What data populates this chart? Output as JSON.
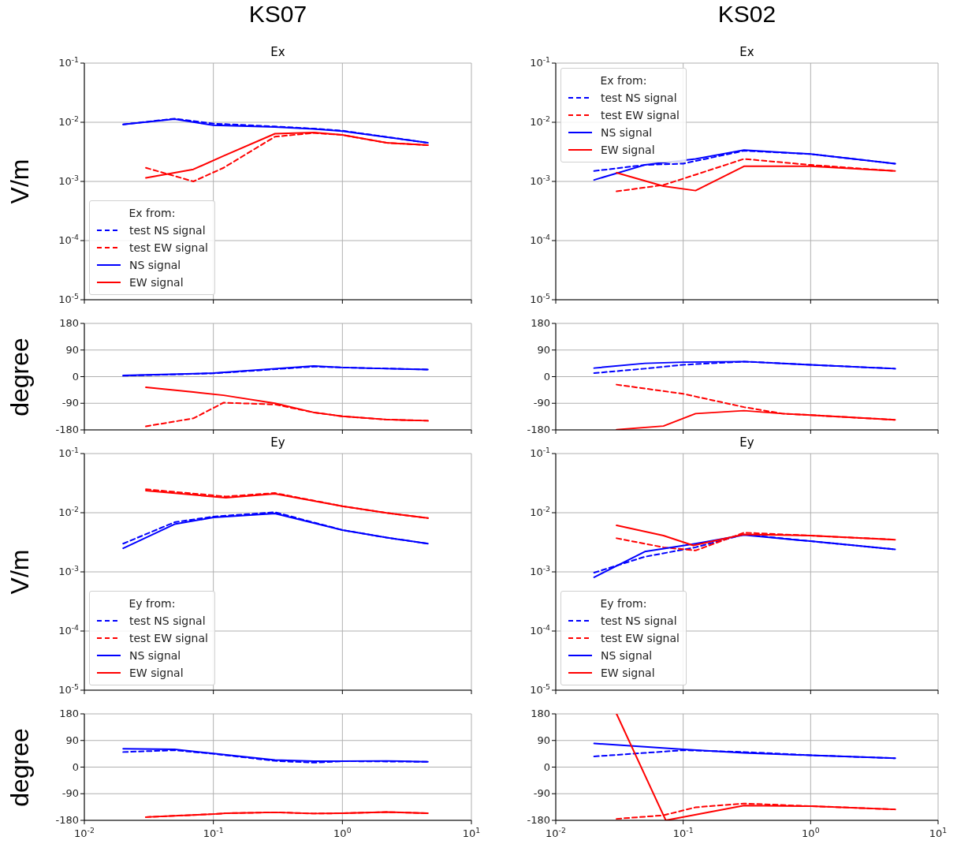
{
  "chart_data": [
    {
      "type": "line",
      "title": "KS07",
      "subtitle": "Ex",
      "ylabel": "V/m",
      "legend_title": "Ex from:",
      "legend": "bottom left",
      "log": "xy",
      "grid": true,
      "tick_labels": "y",
      "xlim": [
        0.01,
        10
      ],
      "xticks": [
        {
          "value": 0.01,
          "label": null
        },
        {
          "value": 0.1,
          "label": null
        },
        {
          "value": 1,
          "label": null
        },
        {
          "value": 10,
          "label": null
        }
      ],
      "ylim": [
        1e-05,
        0.1
      ],
      "yticks": [
        {
          "value": 1e-05,
          "label": "10$^{-5}$"
        },
        {
          "value": 0.0001,
          "label": "10$^{-4}$"
        },
        {
          "value": 0.001,
          "label": "10$^{-3}$"
        },
        {
          "value": 0.01,
          "label": "10$^{-2}$"
        },
        {
          "value": 0.1,
          "label": "10$^{-1}$"
        }
      ],
      "series": [
        {
          "name": "test NS signal",
          "color": "#0000ff",
          "line_style": "dashed",
          "x": [
            0.02,
            0.05,
            0.1,
            0.3,
            0.6,
            1,
            4.6
          ],
          "values": [
            0.0092,
            0.0115,
            0.0095,
            0.0085,
            0.0078,
            0.0072,
            0.0045
          ]
        },
        {
          "name": "test EW signal",
          "color": "#ff0000",
          "line_style": "dashed",
          "x": [
            0.03,
            0.07,
            0.12,
            0.3,
            0.6,
            1,
            2.2,
            4.6
          ],
          "values": [
            0.0017,
            0.001,
            0.0017,
            0.0057,
            0.0066,
            0.0061,
            0.0045,
            0.0041
          ]
        },
        {
          "name": "NS signal",
          "color": "#0000ff",
          "line_style": "solid",
          "x": [
            0.02,
            0.05,
            0.1,
            0.3,
            0.6,
            1,
            4.6
          ],
          "values": [
            0.0092,
            0.0113,
            0.0089,
            0.0083,
            0.0077,
            0.0071,
            0.0045
          ]
        },
        {
          "name": "EW signal",
          "color": "#ff0000",
          "line_style": "solid",
          "x": [
            0.03,
            0.07,
            0.12,
            0.3,
            0.6,
            1,
            2.2,
            4.6
          ],
          "values": [
            0.00115,
            0.0016,
            0.0027,
            0.0064,
            0.0067,
            0.0061,
            0.0045,
            0.0041
          ]
        }
      ]
    },
    {
      "type": "line",
      "title": "KS02",
      "subtitle": "Ex",
      "legend_title": "Ex from:",
      "legend": "top left",
      "log": "xy",
      "grid": true,
      "tick_labels": "y",
      "xlim": [
        0.01,
        10
      ],
      "xticks": [
        {
          "value": 0.01,
          "label": null
        },
        {
          "value": 0.1,
          "label": null
        },
        {
          "value": 1,
          "label": null
        },
        {
          "value": 10,
          "label": null
        }
      ],
      "ylim": [
        1e-05,
        0.1
      ],
      "yticks": [
        {
          "value": 1e-05,
          "label": "10$^{-5}$"
        },
        {
          "value": 0.0001,
          "label": "10$^{-4}$"
        },
        {
          "value": 0.001,
          "label": "10$^{-3}$"
        },
        {
          "value": 0.01,
          "label": "10$^{-2}$"
        },
        {
          "value": 0.1,
          "label": "10$^{-1}$"
        }
      ],
      "series": [
        {
          "name": "test NS signal",
          "color": "#0000ff",
          "line_style": "dashed",
          "x": [
            0.02,
            0.05,
            0.1,
            0.3,
            1,
            4.6
          ],
          "values": [
            0.0015,
            0.0019,
            0.002,
            0.0033,
            0.0029,
            0.002
          ]
        },
        {
          "name": "test EW signal",
          "color": "#ff0000",
          "line_style": "dashed",
          "x": [
            0.03,
            0.07,
            0.125,
            0.3,
            1,
            4.6
          ],
          "values": [
            0.00068,
            0.00087,
            0.0013,
            0.0024,
            0.0019,
            0.0015
          ]
        },
        {
          "name": "NS signal",
          "color": "#0000ff",
          "line_style": "solid",
          "x": [
            0.02,
            0.05,
            0.125,
            0.3,
            1,
            4.6
          ],
          "values": [
            0.00106,
            0.0019,
            0.0024,
            0.0034,
            0.0029,
            0.002
          ]
        },
        {
          "name": "EW signal",
          "color": "#ff0000",
          "line_style": "solid",
          "x": [
            0.03,
            0.07,
            0.125,
            0.3,
            1,
            4.6
          ],
          "values": [
            0.0014,
            0.00083,
            0.0007,
            0.0018,
            0.0018,
            0.0015
          ]
        }
      ]
    },
    {
      "type": "line",
      "ylabel": "degree",
      "log": "x",
      "grid": true,
      "tick_labels": "y",
      "xlim": [
        0.01,
        10
      ],
      "xticks": [
        {
          "value": 0.01,
          "label": null
        },
        {
          "value": 0.1,
          "label": null
        },
        {
          "value": 1,
          "label": null
        },
        {
          "value": 10,
          "label": null
        }
      ],
      "ylim": [
        -180,
        180
      ],
      "yticks": [
        -180,
        -90,
        0,
        90,
        180
      ],
      "series": [
        {
          "color": "#0000ff",
          "line_style": "dashed",
          "x": [
            0.02,
            0.1,
            0.3,
            0.6,
            1,
            4.6
          ],
          "values": [
            3,
            11,
            25,
            34,
            31,
            24
          ]
        },
        {
          "color": "#ff0000",
          "line_style": "dashed",
          "x": [
            0.03,
            0.07,
            0.12,
            0.3,
            0.6,
            1,
            2.2,
            4.6
          ],
          "values": [
            -168,
            -141,
            -88,
            -94,
            -121,
            -134,
            -145,
            -149
          ]
        },
        {
          "color": "#0000ff",
          "line_style": "solid",
          "x": [
            0.02,
            0.1,
            0.3,
            0.6,
            1,
            2.2,
            4.6
          ],
          "values": [
            4,
            12,
            27,
            36,
            31,
            27,
            24
          ]
        },
        {
          "color": "#ff0000",
          "line_style": "solid",
          "x": [
            0.03,
            0.07,
            0.12,
            0.3,
            0.6,
            1,
            2.2,
            4.6
          ],
          "values": [
            -36,
            -52,
            -63,
            -90,
            -121,
            -134,
            -145,
            -149
          ]
        }
      ]
    },
    {
      "type": "line",
      "log": "x",
      "grid": true,
      "tick_labels": "y",
      "xlim": [
        0.01,
        10
      ],
      "xticks": [
        {
          "value": 0.01,
          "label": null
        },
        {
          "value": 0.1,
          "label": null
        },
        {
          "value": 1,
          "label": null
        },
        {
          "value": 10,
          "label": null
        }
      ],
      "ylim": [
        -180,
        180
      ],
      "yticks": [
        -180,
        -90,
        0,
        90,
        180
      ],
      "series": [
        {
          "color": "#0000ff",
          "line_style": "dashed",
          "x": [
            0.02,
            0.05,
            0.1,
            0.3,
            1,
            4.6
          ],
          "values": [
            12,
            27,
            40,
            51,
            40,
            27
          ]
        },
        {
          "color": "#ff0000",
          "line_style": "dashed",
          "x": [
            0.03,
            0.1,
            0.3,
            0.6,
            1,
            4.6
          ],
          "values": [
            -27,
            -58,
            -103,
            -125,
            -130,
            -146
          ]
        },
        {
          "color": "#0000ff",
          "line_style": "solid",
          "x": [
            0.02,
            0.05,
            0.1,
            0.3,
            1,
            4.6
          ],
          "values": [
            29,
            45,
            49,
            51,
            40,
            27
          ]
        },
        {
          "color": "#ff0000",
          "line_style": "solid",
          "x": [
            0.03,
            0.07,
            0.125,
            0.3,
            0.6,
            1,
            4.6
          ],
          "values": [
            -179,
            -167,
            -125,
            -115,
            -125,
            -130,
            -146
          ]
        }
      ]
    },
    {
      "type": "line",
      "title": "Ey",
      "ylabel": "V/m",
      "legend_title": "Ey from:",
      "legend": "bottom left",
      "log": "xy",
      "grid": true,
      "tick_labels": "y",
      "xlim": [
        0.01,
        10
      ],
      "xticks": [
        {
          "value": 0.01,
          "label": null
        },
        {
          "value": 0.1,
          "label": null
        },
        {
          "value": 1,
          "label": null
        },
        {
          "value": 10,
          "label": null
        }
      ],
      "ylim": [
        1e-05,
        0.1
      ],
      "yticks": [
        {
          "value": 1e-05,
          "label": "10$^{-5}$"
        },
        {
          "value": 0.0001,
          "label": "10$^{-4}$"
        },
        {
          "value": 0.001,
          "label": "10$^{-3}$"
        },
        {
          "value": 0.01,
          "label": "10$^{-2}$"
        },
        {
          "value": 0.1,
          "label": "10$^{-1}$"
        }
      ],
      "series": [
        {
          "name": "test NS signal",
          "color": "#0000ff",
          "line_style": "dashed",
          "x": [
            0.02,
            0.05,
            0.1,
            0.3,
            1,
            2.2,
            4.6
          ],
          "values": [
            0.003,
            0.0069,
            0.0086,
            0.0102,
            0.0051,
            0.0038,
            0.003
          ]
        },
        {
          "name": "test EW signal",
          "color": "#ff0000",
          "line_style": "dashed",
          "x": [
            0.03,
            0.125,
            0.3,
            1,
            2.2,
            4.6
          ],
          "values": [
            0.0249,
            0.0188,
            0.0215,
            0.0129,
            0.0099,
            0.0081
          ]
        },
        {
          "name": "NS signal",
          "color": "#0000ff",
          "line_style": "solid",
          "x": [
            0.02,
            0.05,
            0.1,
            0.3,
            1,
            2.2,
            4.6
          ],
          "values": [
            0.0025,
            0.0064,
            0.0083,
            0.0097,
            0.0051,
            0.0038,
            0.003
          ]
        },
        {
          "name": "EW signal",
          "color": "#ff0000",
          "line_style": "solid",
          "x": [
            0.03,
            0.125,
            0.3,
            1,
            2.2,
            4.6
          ],
          "values": [
            0.0236,
            0.0179,
            0.0209,
            0.0129,
            0.0099,
            0.0081
          ]
        }
      ]
    },
    {
      "type": "line",
      "title": "Ey",
      "legend_title": "Ey from:",
      "legend": "bottom left",
      "log": "xy",
      "grid": true,
      "tick_labels": "y",
      "xlim": [
        0.01,
        10
      ],
      "xticks": [
        {
          "value": 0.01,
          "label": null
        },
        {
          "value": 0.1,
          "label": null
        },
        {
          "value": 1,
          "label": null
        },
        {
          "value": 10,
          "label": null
        }
      ],
      "ylim": [
        1e-05,
        0.1
      ],
      "yticks": [
        {
          "value": 1e-05,
          "label": "10$^{-5}$"
        },
        {
          "value": 0.0001,
          "label": "10$^{-4}$"
        },
        {
          "value": 0.001,
          "label": "10$^{-3}$"
        },
        {
          "value": 0.01,
          "label": "10$^{-2}$"
        },
        {
          "value": 0.1,
          "label": "10$^{-1}$"
        }
      ],
      "series": [
        {
          "name": "test NS signal",
          "color": "#0000ff",
          "line_style": "dashed",
          "x": [
            0.02,
            0.05,
            0.125,
            0.3,
            1,
            4.6
          ],
          "values": [
            0.00097,
            0.0018,
            0.0026,
            0.0043,
            0.0033,
            0.0024
          ]
        },
        {
          "name": "test EW signal",
          "color": "#ff0000",
          "line_style": "dashed",
          "x": [
            0.03,
            0.07,
            0.125,
            0.3,
            1,
            4.6
          ],
          "values": [
            0.0037,
            0.0026,
            0.0023,
            0.0046,
            0.0041,
            0.0035
          ]
        },
        {
          "name": "NS signal",
          "color": "#0000ff",
          "line_style": "solid",
          "x": [
            0.02,
            0.05,
            0.125,
            0.3,
            1,
            4.6
          ],
          "values": [
            0.00081,
            0.0022,
            0.003,
            0.0042,
            0.0033,
            0.0024
          ]
        },
        {
          "name": "EW signal",
          "color": "#ff0000",
          "line_style": "solid",
          "x": [
            0.03,
            0.07,
            0.12,
            0.3,
            1,
            4.6
          ],
          "values": [
            0.0061,
            0.0041,
            0.0028,
            0.0043,
            0.0041,
            0.0035
          ]
        }
      ]
    },
    {
      "type": "line",
      "ylabel": "degree",
      "log": "x",
      "grid": true,
      "xlim": [
        0.01,
        10
      ],
      "xticks": [
        {
          "value": 0.01,
          "label": "10$^{-2}$"
        },
        {
          "value": 0.1,
          "label": "10$^{-1}$"
        },
        {
          "value": 1,
          "label": "10$^{0}$"
        },
        {
          "value": 10,
          "label": "10$^{1}$"
        }
      ],
      "ylim": [
        -180,
        180
      ],
      "yticks": [
        -180,
        -90,
        0,
        90,
        180
      ],
      "series": [
        {
          "color": "#0000ff",
          "line_style": "dashed",
          "x": [
            0.02,
            0.05,
            0.1,
            0.3,
            0.6,
            1,
            4.6
          ],
          "values": [
            51,
            57,
            45,
            21,
            15,
            20,
            18
          ]
        },
        {
          "color": "#ff0000",
          "line_style": "dashed",
          "x": [
            0.03,
            0.1,
            0.125,
            0.3,
            0.6,
            1,
            2.2,
            4.6
          ],
          "values": [
            -169,
            -159,
            -156,
            -153,
            -157,
            -156,
            -152,
            -156
          ]
        },
        {
          "color": "#0000ff",
          "line_style": "solid",
          "x": [
            0.02,
            0.05,
            0.1,
            0.3,
            0.6,
            1,
            2.2,
            4.6
          ],
          "values": [
            62,
            60,
            46,
            24,
            20,
            20,
            21,
            18
          ]
        },
        {
          "color": "#ff0000",
          "line_style": "solid",
          "x": [
            0.03,
            0.1,
            0.125,
            0.3,
            0.6,
            1,
            2.2,
            4.6
          ],
          "values": [
            -169,
            -159,
            -156,
            -153,
            -157,
            -156,
            -152,
            -156
          ]
        }
      ]
    },
    {
      "type": "line",
      "log": "x",
      "grid": true,
      "xlim": [
        0.01,
        10
      ],
      "xticks": [
        {
          "value": 0.01,
          "label": "10$^{-2}$"
        },
        {
          "value": 0.1,
          "label": "10$^{-1}$"
        },
        {
          "value": 1,
          "label": "10$^{0}$"
        },
        {
          "value": 10,
          "label": "10$^{1}$"
        }
      ],
      "ylim": [
        -180,
        180
      ],
      "yticks": [
        -180,
        -90,
        0,
        90,
        180
      ],
      "series": [
        {
          "color": "#0000ff",
          "line_style": "dashed",
          "x": [
            0.02,
            0.05,
            0.1,
            0.3,
            1,
            4.6
          ],
          "values": [
            36,
            48,
            57,
            51,
            40,
            30
          ]
        },
        {
          "color": "#ff0000",
          "line_style": "dashed",
          "x": [
            0.03,
            0.07,
            0.125,
            0.3,
            1,
            4.6
          ],
          "values": [
            -175,
            -163,
            -136,
            -123,
            -132,
            -143
          ]
        },
        {
          "color": "#0000ff",
          "line_style": "solid",
          "x": [
            0.02,
            0.1,
            0.3,
            1,
            4.6
          ],
          "values": [
            80,
            60,
            48,
            40,
            30
          ]
        },
        {
          "color": "#ff0000",
          "line_style": "solid",
          "x": [
            0.03,
            0.073,
            0.3,
            1,
            4.6
          ],
          "values": [
            180,
            -180,
            -130,
            -132,
            -143
          ]
        }
      ]
    }
  ]
}
